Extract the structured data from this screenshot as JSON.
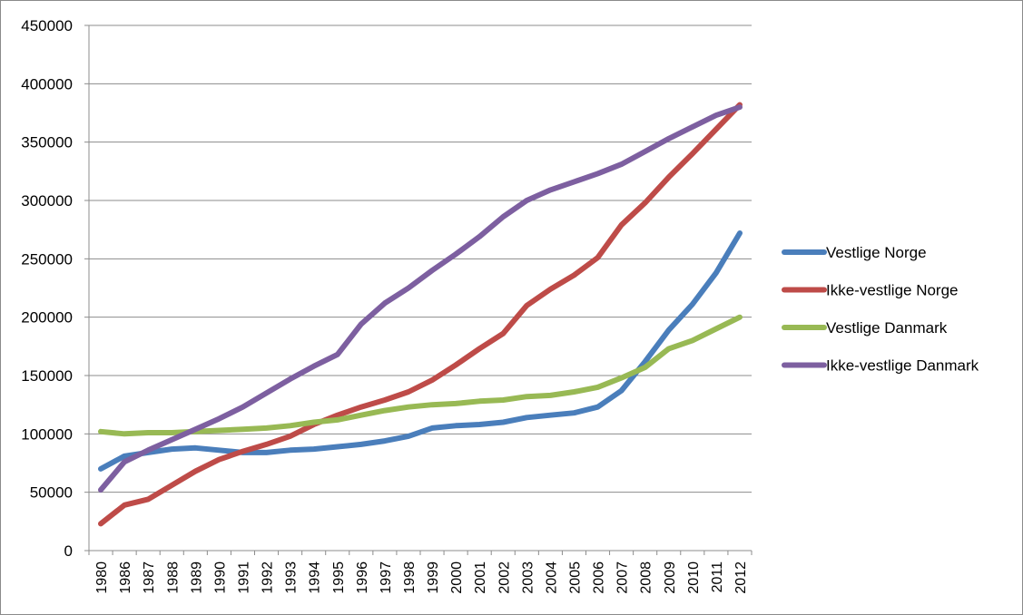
{
  "chart_data": {
    "type": "line",
    "title": "",
    "xlabel": "",
    "ylabel": "",
    "ylim": [
      0,
      450000
    ],
    "yticks": [
      0,
      50000,
      100000,
      150000,
      200000,
      250000,
      300000,
      350000,
      400000,
      450000
    ],
    "grid": "horizontal",
    "legend_position": "right",
    "categories": [
      "1980",
      "1986",
      "1987",
      "1988",
      "1989",
      "1990",
      "1991",
      "1992",
      "1993",
      "1994",
      "1995",
      "1996",
      "1997",
      "1998",
      "1999",
      "2000",
      "2001",
      "2002",
      "2003",
      "2004",
      "2005",
      "2006",
      "2007",
      "2008",
      "2009",
      "2010",
      "2011",
      "2012"
    ],
    "series": [
      {
        "name": "Vestlige Norge",
        "color": "#4a7ebb",
        "values": [
          70000,
          81000,
          84000,
          87000,
          88000,
          86000,
          84000,
          84000,
          86000,
          87000,
          89000,
          91000,
          94000,
          98000,
          105000,
          107000,
          108000,
          110000,
          114000,
          116000,
          118000,
          123000,
          137000,
          162000,
          189000,
          211000,
          238000,
          272000
        ]
      },
      {
        "name": "Ikke-vestlige Norge",
        "color": "#be4b48",
        "values": [
          23000,
          39000,
          44000,
          56000,
          68000,
          78000,
          85000,
          91000,
          98000,
          108000,
          116000,
          123000,
          129000,
          136000,
          146000,
          159000,
          173000,
          186000,
          210000,
          224000,
          236000,
          251000,
          279000,
          298000,
          320000,
          340000,
          361000,
          382000
        ]
      },
      {
        "name": "Vestlige Danmark",
        "color": "#98b954",
        "values": [
          102000,
          100000,
          101000,
          101000,
          102000,
          103000,
          104000,
          105000,
          107000,
          110000,
          112000,
          116000,
          120000,
          123000,
          125000,
          126000,
          128000,
          129000,
          132000,
          133000,
          136000,
          140000,
          148000,
          157000,
          173000,
          180000,
          190000,
          200000
        ]
      },
      {
        "name": "Ikke-vestlige Danmark",
        "color": "#7d5fa0",
        "values": [
          52000,
          76000,
          86000,
          95000,
          104000,
          113000,
          123000,
          135000,
          147000,
          158000,
          168000,
          194000,
          212000,
          225000,
          240000,
          254000,
          269000,
          286000,
          300000,
          309000,
          316000,
          323000,
          331000,
          342000,
          353000,
          363000,
          373000,
          380000
        ]
      }
    ]
  }
}
